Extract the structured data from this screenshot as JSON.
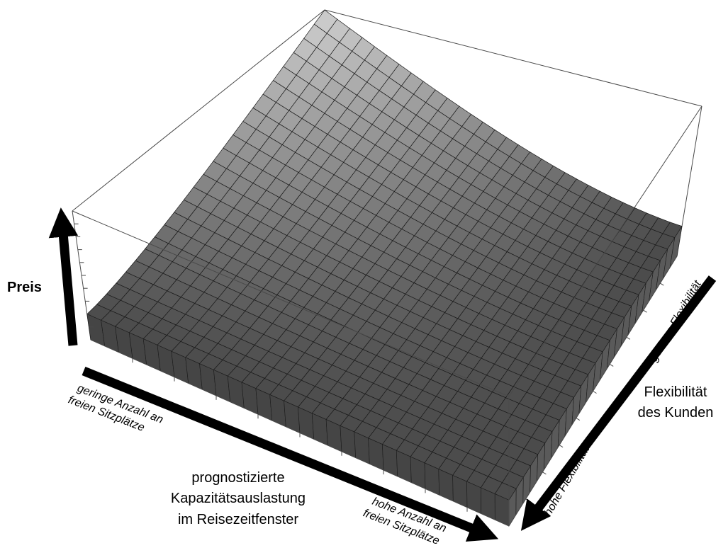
{
  "chart_data": {
    "type": "surface",
    "z_axis": {
      "label": "Preis"
    },
    "x_axis": {
      "label_lines": [
        "prognostizierte",
        "Kapazitätsauslastung",
        "im Reisezeitfenster"
      ],
      "low_end_lines": [
        "geringe Anzahl an",
        "freien Sitzplätze"
      ],
      "high_end_lines": [
        "hohe Anzahl an",
        "freien Sitzplätze"
      ]
    },
    "y_axis": {
      "label_lines": [
        "Flexibilität",
        "des Kunden"
      ],
      "low_end": "geringe Flexibilität",
      "high_end": "hohe Flexibilität"
    },
    "grid": {
      "u_divisions": 30,
      "v_divisions": 24
    },
    "colors": {
      "surface_light": "#e4e4e4",
      "surface_dark": "#3e3e3e",
      "mesh": "#1a1a1a",
      "box": "#4a4a4a",
      "arrow": "#000000"
    }
  }
}
